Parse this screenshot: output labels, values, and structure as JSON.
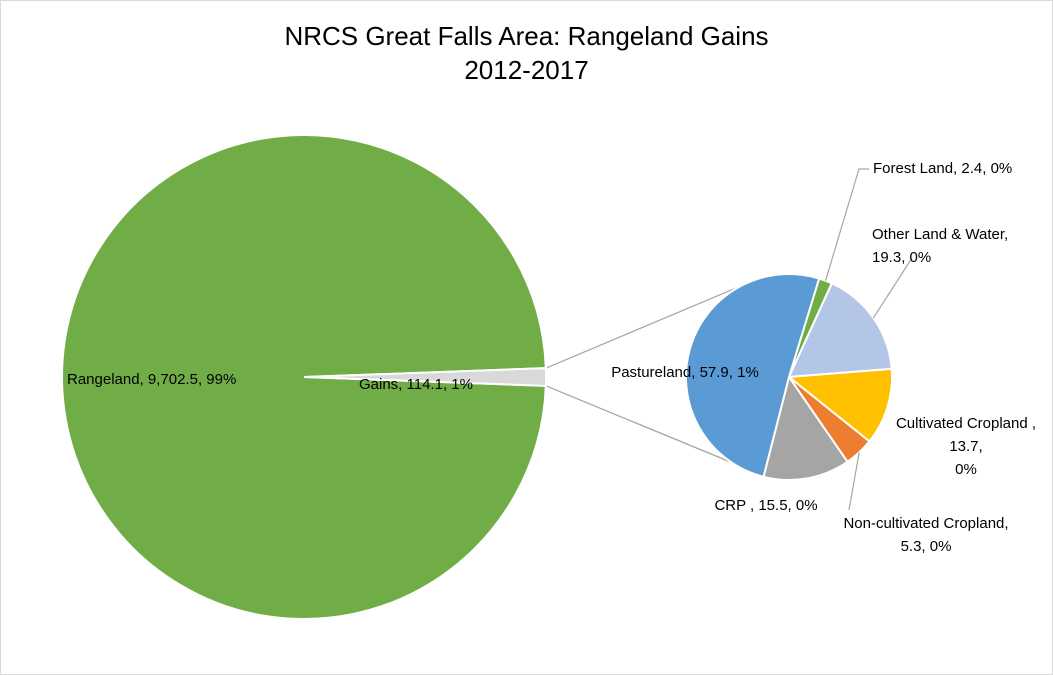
{
  "chart_data": {
    "type": "pie",
    "subtype": "pie-of-pie",
    "title_line1": "NRCS Great Falls Area: Rangeland Gains",
    "title_line2": "2012-2017",
    "legend": "none",
    "main_pie": [
      {
        "name": "Rangeland",
        "value": 9702.5,
        "percent": "99%",
        "label": "Rangeland, 9,702.5, 99%",
        "color": "#70ad47"
      },
      {
        "name": "Gains",
        "value": 114.1,
        "percent": "1%",
        "label": "Gains, 114.1, 1%",
        "color": "#d9d9d9"
      }
    ],
    "secondary_pie": [
      {
        "name": "Forest Land",
        "value": 2.4,
        "percent": "0%",
        "label_lines": [
          "Forest Land, 2.4, 0%"
        ],
        "color": "#70ad47"
      },
      {
        "name": "Other Land & Water",
        "value": 19.3,
        "percent": "0%",
        "label_lines": [
          "Other Land & Water,",
          "19.3, 0%"
        ],
        "color": "#b4c6e7"
      },
      {
        "name": "Cultivated Cropland",
        "value": 13.7,
        "percent": "0%",
        "label_lines": [
          "Cultivated Cropland ,",
          "13.7,",
          "0%"
        ],
        "color": "#ffc000"
      },
      {
        "name": "Non-cultivated Cropland",
        "value": 5.3,
        "percent": "0%",
        "label_lines": [
          "Non-cultivated Cropland,",
          "5.3, 0%"
        ],
        "color": "#ed7d31"
      },
      {
        "name": "CRP",
        "value": 15.5,
        "percent": "0%",
        "label_lines": [
          "CRP , 15.5, 0%"
        ],
        "color": "#a5a5a5"
      },
      {
        "name": "Pastureland",
        "value": 57.9,
        "percent": "1%",
        "label_lines": [
          "Pastureland, 57.9, 1%"
        ],
        "color": "#5b9bd5"
      }
    ]
  }
}
